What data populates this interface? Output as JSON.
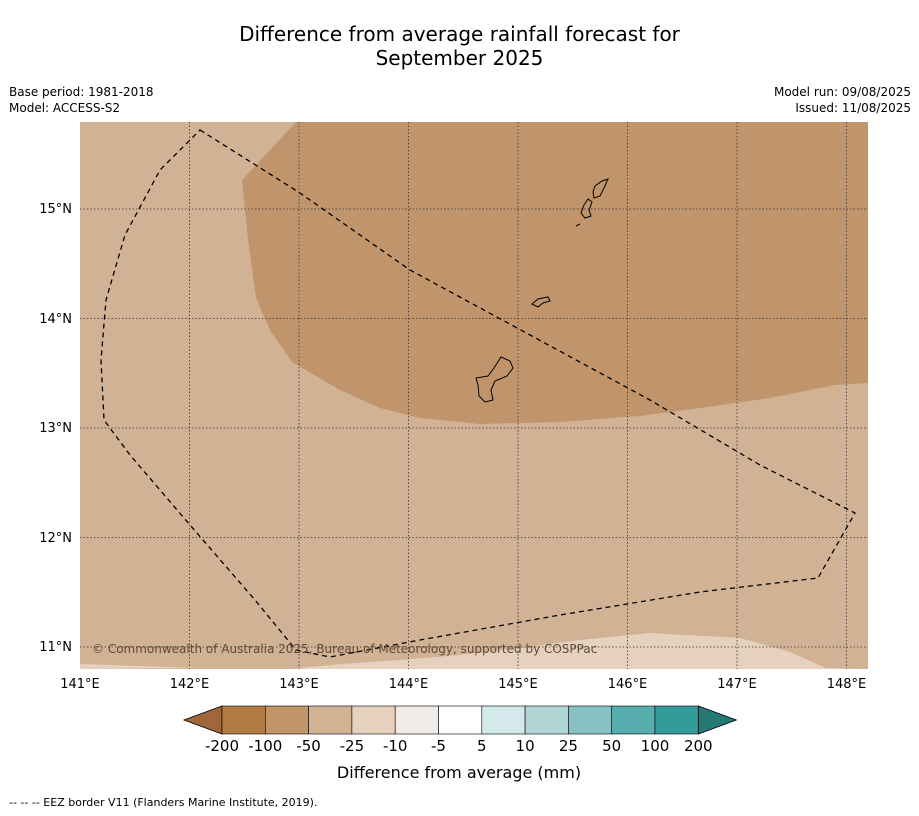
{
  "header": {
    "title_line1": "Difference from average rainfall forecast for",
    "title_line2": "September 2025",
    "base_period": "Base period: 1981-2018",
    "model": "Model: ACCESS-S2",
    "model_run": "Model run: 09/08/2025",
    "issued": "Issued: 11/08/2025"
  },
  "map": {
    "lon_ticks": [
      "141°E",
      "142°E",
      "143°E",
      "144°E",
      "145°E",
      "146°E",
      "147°E",
      "148°E"
    ],
    "lat_ticks": [
      "15°N",
      "14°N",
      "13°N",
      "12°N",
      "11°N"
    ],
    "copyright": "© Commonwealth of Australia 2025, Bureau of Meteorology, supported by COSPPac",
    "colors": {
      "band_-100_-50": "#c0956b",
      "band_-50_-25": "#d2b294",
      "band_-25_-10": "#e6d1be",
      "grid": "#333333",
      "coast": "#000000"
    }
  },
  "colorbar": {
    "ticks": [
      "-200",
      "-100",
      "-50",
      "-25",
      "-10",
      "-5",
      "5",
      "10",
      "25",
      "50",
      "100",
      "200"
    ],
    "colors": [
      "#a0673a",
      "#b07a44",
      "#c0956b",
      "#d2b294",
      "#e6d1be",
      "#f0ebe7",
      "#ffffff",
      "#d4e9e9",
      "#afd5d4",
      "#87c1c1",
      "#58aeae",
      "#339c9a",
      "#267874"
    ],
    "label": "Difference from average (mm)"
  },
  "footnote": "--  --  -- EEZ border V11 (Flanders Marine Institute, 2019)."
}
